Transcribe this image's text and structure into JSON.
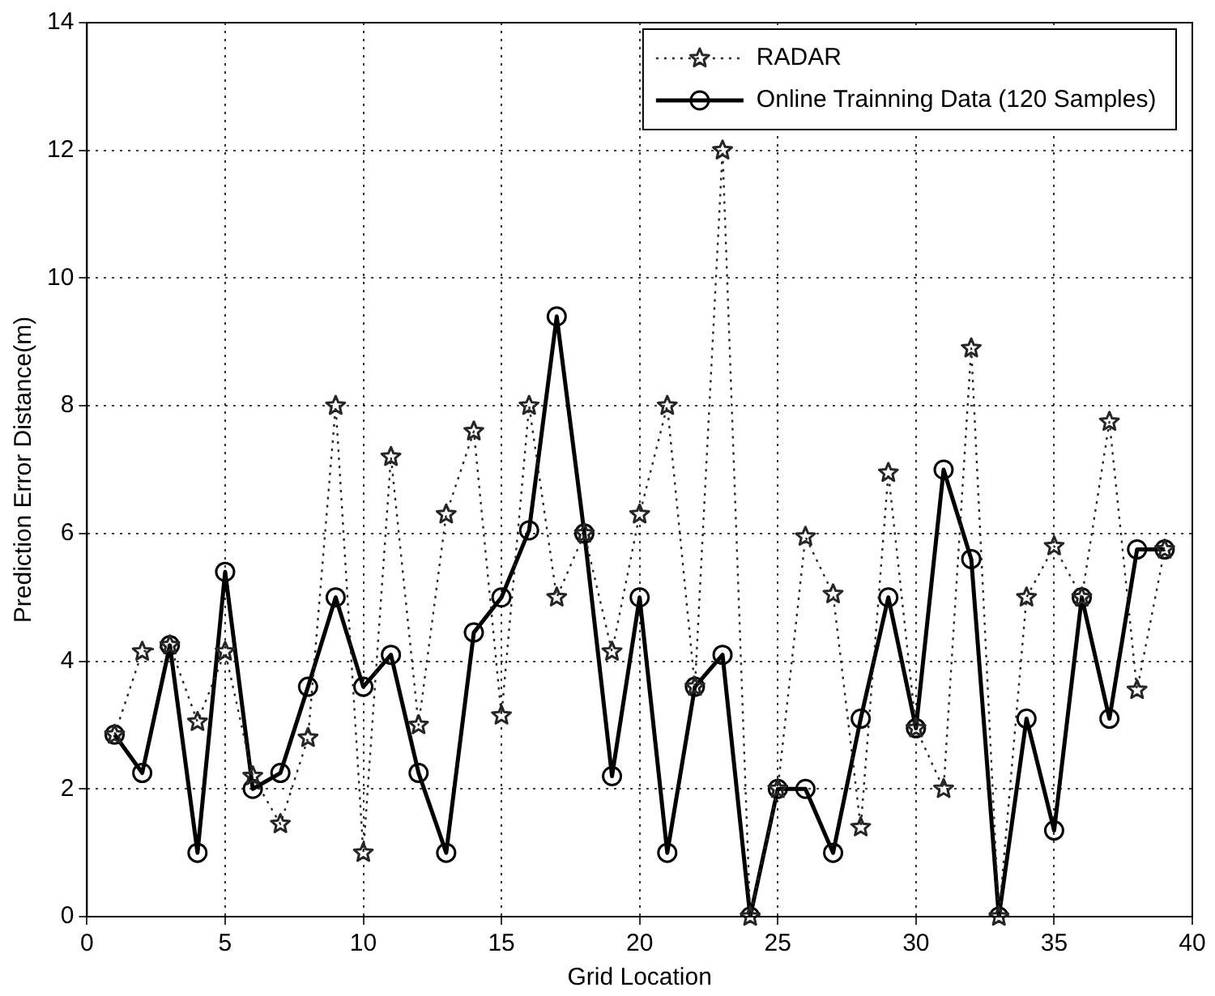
{
  "chart_data": {
    "type": "line",
    "xlabel": "Grid Location",
    "ylabel": "Prediction Error Distance(m)",
    "x": [
      1,
      2,
      3,
      4,
      5,
      6,
      7,
      8,
      9,
      10,
      11,
      12,
      13,
      14,
      15,
      16,
      17,
      18,
      19,
      20,
      21,
      22,
      23,
      24,
      25,
      26,
      27,
      28,
      29,
      30,
      31,
      32,
      33,
      34,
      35,
      36,
      37,
      38,
      39
    ],
    "xlim": [
      0,
      40
    ],
    "xticks": [
      0,
      5,
      10,
      15,
      20,
      25,
      30,
      35,
      40
    ],
    "ylim": [
      0,
      14
    ],
    "yticks": [
      0,
      2,
      4,
      6,
      8,
      10,
      12,
      14
    ],
    "grid": true,
    "legend": "top right",
    "series": [
      {
        "name": "RADAR",
        "color": "#262626",
        "marker": "star",
        "line_style": "dotted",
        "values": [
          2.85,
          4.15,
          4.25,
          3.05,
          4.15,
          2.2,
          1.45,
          2.8,
          8.0,
          1.0,
          7.2,
          3.0,
          6.3,
          7.6,
          3.15,
          8.0,
          5.0,
          6.0,
          4.15,
          6.3,
          8.0,
          3.6,
          12.0,
          0,
          2.0,
          5.95,
          5.05,
          1.4,
          6.95,
          2.95,
          2.0,
          8.9,
          0,
          5.0,
          5.8,
          5.0,
          7.75,
          3.55,
          5.75
        ]
      },
      {
        "name": "Online Trainning Data (120 Samples)",
        "color": "#000000",
        "marker": "circle",
        "line_style": "solid",
        "values": [
          2.85,
          2.25,
          4.25,
          1.0,
          5.4,
          2.0,
          2.25,
          3.6,
          5.0,
          3.6,
          4.1,
          2.25,
          1.0,
          4.45,
          5.0,
          6.05,
          9.4,
          6.0,
          2.2,
          5.0,
          1.0,
          3.6,
          4.1,
          0,
          2.0,
          2.0,
          1.0,
          3.1,
          5.0,
          2.95,
          7.0,
          5.6,
          0,
          3.1,
          1.35,
          5.0,
          3.1,
          5.75,
          5.75
        ]
      }
    ]
  }
}
